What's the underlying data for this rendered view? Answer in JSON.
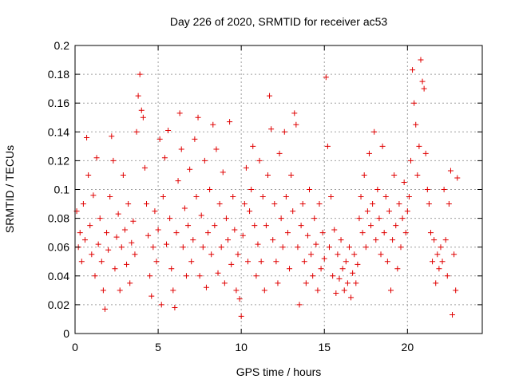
{
  "chart_data": {
    "type": "scatter",
    "title": "Day 226 of 2020, SRMTID for receiver ac53",
    "xlabel": "GPS time / hours",
    "ylabel": "SRMTID / TECUs",
    "xlim": [
      0,
      24.5
    ],
    "ylim": [
      0,
      0.2
    ],
    "xticks": [
      0,
      5,
      10,
      15,
      20
    ],
    "xtick_labels": [
      "0",
      "5",
      "10",
      "15",
      "20"
    ],
    "yticks": [
      0,
      0.02,
      0.04,
      0.06,
      0.08,
      0.1,
      0.12,
      0.14,
      0.16,
      0.18,
      0.2
    ],
    "ytick_labels": [
      "0",
      "0.02",
      "0.04",
      "0.06",
      "0.08",
      "0.1",
      "0.12",
      "0.14",
      "0.16",
      "0.18",
      "0.2"
    ],
    "grid": true,
    "marker": "plus",
    "color": "#e00000",
    "series": [
      {
        "name": "SRMTID",
        "points": [
          [
            0.1,
            0.085
          ],
          [
            0.2,
            0.06
          ],
          [
            0.3,
            0.07
          ],
          [
            0.4,
            0.05
          ],
          [
            0.5,
            0.09
          ],
          [
            0.6,
            0.065
          ],
          [
            0.7,
            0.136
          ],
          [
            0.8,
            0.11
          ],
          [
            0.9,
            0.075
          ],
          [
            1.0,
            0.055
          ],
          [
            1.1,
            0.096
          ],
          [
            1.2,
            0.04
          ],
          [
            1.3,
            0.122
          ],
          [
            1.4,
            0.062
          ],
          [
            1.5,
            0.08
          ],
          [
            1.6,
            0.05
          ],
          [
            1.7,
            0.03
          ],
          [
            1.8,
            0.017
          ],
          [
            1.9,
            0.07
          ],
          [
            2.0,
            0.058
          ],
          [
            2.1,
            0.095
          ],
          [
            2.2,
            0.137
          ],
          [
            2.3,
            0.12
          ],
          [
            2.4,
            0.045
          ],
          [
            2.5,
            0.067
          ],
          [
            2.6,
            0.083
          ],
          [
            2.7,
            0.03
          ],
          [
            2.8,
            0.06
          ],
          [
            2.9,
            0.11
          ],
          [
            3.0,
            0.072
          ],
          [
            3.1,
            0.048
          ],
          [
            3.2,
            0.09
          ],
          [
            3.3,
            0.035
          ],
          [
            3.4,
            0.063
          ],
          [
            3.5,
            0.078
          ],
          [
            3.6,
            0.055
          ],
          [
            3.7,
            0.14
          ],
          [
            3.8,
            0.165
          ],
          [
            3.9,
            0.18
          ],
          [
            4.0,
            0.155
          ],
          [
            4.1,
            0.15
          ],
          [
            4.2,
            0.115
          ],
          [
            4.3,
            0.09
          ],
          [
            4.4,
            0.068
          ],
          [
            4.5,
            0.04
          ],
          [
            4.6,
            0.026
          ],
          [
            4.7,
            0.06
          ],
          [
            4.8,
            0.085
          ],
          [
            4.9,
            0.05
          ],
          [
            5.0,
            0.072
          ],
          [
            5.1,
            0.135
          ],
          [
            5.2,
            0.02
          ],
          [
            5.3,
            0.095
          ],
          [
            5.4,
            0.122
          ],
          [
            5.5,
            0.062
          ],
          [
            5.6,
            0.141
          ],
          [
            5.7,
            0.08
          ],
          [
            5.8,
            0.045
          ],
          [
            5.9,
            0.03
          ],
          [
            6.0,
            0.018
          ],
          [
            6.1,
            0.07
          ],
          [
            6.2,
            0.106
          ],
          [
            6.3,
            0.153
          ],
          [
            6.4,
            0.128
          ],
          [
            6.5,
            0.06
          ],
          [
            6.6,
            0.087
          ],
          [
            6.7,
            0.04
          ],
          [
            6.8,
            0.075
          ],
          [
            6.9,
            0.114
          ],
          [
            7.0,
            0.05
          ],
          [
            7.1,
            0.065
          ],
          [
            7.2,
            0.135
          ],
          [
            7.3,
            0.095
          ],
          [
            7.4,
            0.15
          ],
          [
            7.5,
            0.04
          ],
          [
            7.6,
            0.082
          ],
          [
            7.7,
            0.06
          ],
          [
            7.8,
            0.12
          ],
          [
            7.9,
            0.032
          ],
          [
            8.0,
            0.07
          ],
          [
            8.1,
            0.1
          ],
          [
            8.2,
            0.055
          ],
          [
            8.3,
            0.145
          ],
          [
            8.4,
            0.075
          ],
          [
            8.5,
            0.128
          ],
          [
            8.6,
            0.042
          ],
          [
            8.7,
            0.09
          ],
          [
            8.8,
            0.06
          ],
          [
            8.9,
            0.112
          ],
          [
            9.0,
            0.035
          ],
          [
            9.1,
            0.08
          ],
          [
            9.2,
            0.065
          ],
          [
            9.3,
            0.147
          ],
          [
            9.4,
            0.048
          ],
          [
            9.5,
            0.095
          ],
          [
            9.6,
            0.072
          ],
          [
            9.7,
            0.03
          ],
          [
            9.8,
            0.055
          ],
          [
            9.9,
            0.024
          ],
          [
            10.0,
            0.012
          ],
          [
            10.1,
            0.068
          ],
          [
            10.2,
            0.09
          ],
          [
            10.3,
            0.115
          ],
          [
            10.4,
            0.05
          ],
          [
            10.5,
            0.085
          ],
          [
            10.6,
            0.1
          ],
          [
            10.7,
            0.13
          ],
          [
            10.8,
            0.075
          ],
          [
            10.9,
            0.04
          ],
          [
            11.0,
            0.062
          ],
          [
            11.1,
            0.12
          ],
          [
            11.2,
            0.05
          ],
          [
            11.3,
            0.095
          ],
          [
            11.4,
            0.03
          ],
          [
            11.5,
            0.075
          ],
          [
            11.6,
            0.11
          ],
          [
            11.7,
            0.165
          ],
          [
            11.8,
            0.142
          ],
          [
            11.9,
            0.065
          ],
          [
            12.0,
            0.09
          ],
          [
            12.1,
            0.05
          ],
          [
            12.2,
            0.035
          ],
          [
            12.3,
            0.125
          ],
          [
            12.4,
            0.08
          ],
          [
            12.5,
            0.06
          ],
          [
            12.6,
            0.14
          ],
          [
            12.7,
            0.095
          ],
          [
            12.8,
            0.07
          ],
          [
            12.9,
            0.045
          ],
          [
            13.0,
            0.11
          ],
          [
            13.1,
            0.085
          ],
          [
            13.2,
            0.153
          ],
          [
            13.3,
            0.145
          ],
          [
            13.4,
            0.06
          ],
          [
            13.5,
            0.02
          ],
          [
            13.6,
            0.075
          ],
          [
            13.7,
            0.09
          ],
          [
            13.8,
            0.05
          ],
          [
            13.9,
            0.035
          ],
          [
            14.0,
            0.068
          ],
          [
            14.1,
            0.1
          ],
          [
            14.2,
            0.055
          ],
          [
            14.3,
            0.04
          ],
          [
            14.4,
            0.08
          ],
          [
            14.5,
            0.062
          ],
          [
            14.6,
            0.03
          ],
          [
            14.7,
            0.09
          ],
          [
            14.8,
            0.045
          ],
          [
            14.9,
            0.07
          ],
          [
            15.0,
            0.052
          ],
          [
            15.1,
            0.178
          ],
          [
            15.2,
            0.13
          ],
          [
            15.3,
            0.06
          ],
          [
            15.4,
            0.095
          ],
          [
            15.5,
            0.04
          ],
          [
            15.6,
            0.072
          ],
          [
            15.7,
            0.028
          ],
          [
            15.8,
            0.055
          ],
          [
            15.9,
            0.038
          ],
          [
            16.0,
            0.065
          ],
          [
            16.1,
            0.045
          ],
          [
            16.2,
            0.03
          ],
          [
            16.3,
            0.05
          ],
          [
            16.4,
            0.035
          ],
          [
            16.5,
            0.06
          ],
          [
            16.6,
            0.025
          ],
          [
            16.7,
            0.042
          ],
          [
            16.8,
            0.055
          ],
          [
            16.9,
            0.035
          ],
          [
            17.0,
            0.048
          ],
          [
            17.1,
            0.08
          ],
          [
            17.2,
            0.095
          ],
          [
            17.3,
            0.07
          ],
          [
            17.4,
            0.11
          ],
          [
            17.5,
            0.06
          ],
          [
            17.6,
            0.085
          ],
          [
            17.7,
            0.125
          ],
          [
            17.8,
            0.075
          ],
          [
            17.9,
            0.09
          ],
          [
            18.0,
            0.14
          ],
          [
            18.1,
            0.065
          ],
          [
            18.2,
            0.1
          ],
          [
            18.3,
            0.08
          ],
          [
            18.4,
            0.055
          ],
          [
            18.5,
            0.13
          ],
          [
            18.6,
            0.07
          ],
          [
            18.7,
            0.095
          ],
          [
            18.8,
            0.05
          ],
          [
            18.9,
            0.085
          ],
          [
            19.0,
            0.03
          ],
          [
            19.1,
            0.065
          ],
          [
            19.2,
            0.11
          ],
          [
            19.3,
            0.075
          ],
          [
            19.4,
            0.045
          ],
          [
            19.5,
            0.09
          ],
          [
            19.6,
            0.06
          ],
          [
            19.7,
            0.08
          ],
          [
            19.8,
            0.105
          ],
          [
            19.9,
            0.07
          ],
          [
            20.0,
            0.085
          ],
          [
            20.1,
            0.095
          ],
          [
            20.2,
            0.12
          ],
          [
            20.3,
            0.183
          ],
          [
            20.4,
            0.16
          ],
          [
            20.5,
            0.145
          ],
          [
            20.6,
            0.11
          ],
          [
            20.7,
            0.13
          ],
          [
            20.8,
            0.19
          ],
          [
            20.9,
            0.175
          ],
          [
            21.0,
            0.17
          ],
          [
            21.1,
            0.125
          ],
          [
            21.2,
            0.1
          ],
          [
            21.3,
            0.09
          ],
          [
            21.4,
            0.07
          ],
          [
            21.5,
            0.05
          ],
          [
            21.6,
            0.065
          ],
          [
            21.7,
            0.035
          ],
          [
            21.8,
            0.055
          ],
          [
            21.9,
            0.045
          ],
          [
            22.0,
            0.06
          ],
          [
            22.1,
            0.05
          ],
          [
            22.2,
            0.1
          ],
          [
            22.3,
            0.065
          ],
          [
            22.4,
            0.04
          ],
          [
            22.5,
            0.09
          ],
          [
            22.6,
            0.113
          ],
          [
            22.7,
            0.013
          ],
          [
            22.8,
            0.055
          ],
          [
            22.9,
            0.03
          ],
          [
            23.0,
            0.108
          ]
        ]
      }
    ]
  }
}
